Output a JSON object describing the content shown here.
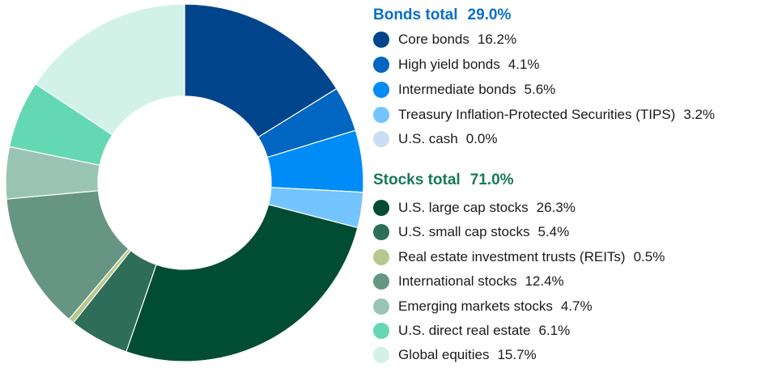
{
  "chart_data": {
    "type": "pie",
    "donut": true,
    "start_angle": "top",
    "direction": "clockwise",
    "groups": [
      {
        "title": "Bonds total",
        "total": "29.0%",
        "color": "#0a6fc9",
        "items": [
          {
            "label": "Core bonds",
            "value": 16.2,
            "display": "16.2%",
            "color": "#00458b"
          },
          {
            "label": "High yield bonds",
            "value": 4.1,
            "display": "4.1%",
            "color": "#0066c2"
          },
          {
            "label": "Intermediate bonds",
            "value": 5.6,
            "display": "5.6%",
            "color": "#008cf7"
          },
          {
            "label": "Treasury Inflation-Protected Securities (TIPS)",
            "value": 3.2,
            "display": "3.2%",
            "color": "#73c4ff"
          },
          {
            "label": "U.S. cash",
            "value": 0.0,
            "display": "0.0%",
            "color": "#c9def2"
          }
        ]
      },
      {
        "title": "Stocks total",
        "total": "71.0%",
        "color": "#17795a",
        "items": [
          {
            "label": "U.S. large cap stocks",
            "value": 26.3,
            "display": "26.3%",
            "color": "#004d33"
          },
          {
            "label": "U.S. small cap stocks",
            "value": 5.4,
            "display": "5.4%",
            "color": "#2e6e58"
          },
          {
            "label": "Real estate investment trusts (REITs)",
            "value": 0.5,
            "display": "0.5%",
            "color": "#b4c98b"
          },
          {
            "label": "International stocks",
            "value": 12.4,
            "display": "12.4%",
            "color": "#669683"
          },
          {
            "label": "Emerging markets stocks",
            "value": 4.7,
            "display": "4.7%",
            "color": "#99c4b4"
          },
          {
            "label": "U.S. direct real estate",
            "value": 6.1,
            "display": "6.1%",
            "color": "#64d8b2"
          },
          {
            "label": "Global equities",
            "value": 15.7,
            "display": "15.7%",
            "color": "#d2f2e7"
          }
        ]
      }
    ]
  }
}
